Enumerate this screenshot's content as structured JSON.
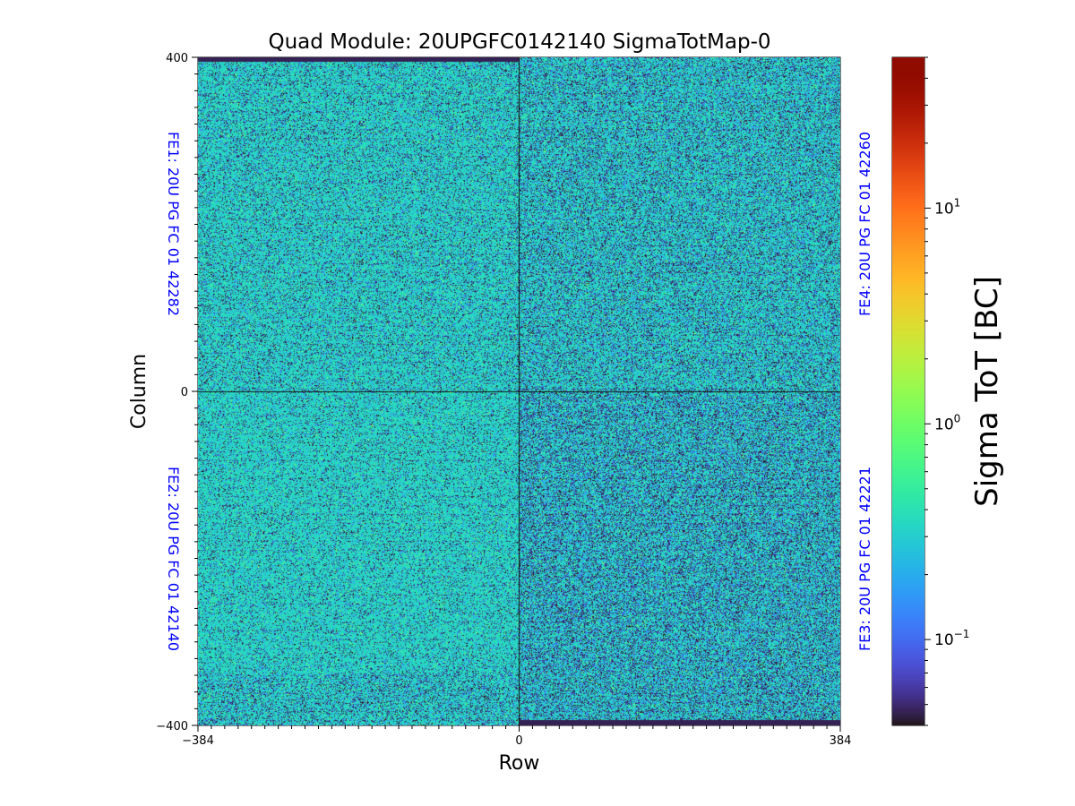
{
  "chart_data": {
    "type": "heatmap",
    "title": "Quad Module: 20UPGFC0142140 SigmaTotMap-0",
    "xlabel": "Row",
    "ylabel": "Column",
    "xlim": [
      -384,
      384
    ],
    "ylim": [
      -400,
      400
    ],
    "x_ticks": [
      "−384",
      "0",
      "384"
    ],
    "y_ticks": [
      "400",
      "0",
      "−400"
    ],
    "quadrant_labels": {
      "top_left": "FE1: 20U PG FC 01 42282",
      "bottom_left": "FE2: 20U PG FC 01 42140",
      "bottom_right": "FE3: 20U PG FC 01 42221",
      "top_right": "FE4: 20U PG FC 01 42260"
    },
    "quadrant_label_color": "#0000ff",
    "colormap": "turbo",
    "color_scale": "log",
    "colorbar": {
      "label": "Sigma ToT [BC]",
      "range": [
        0.04,
        50
      ],
      "ticks": [
        {
          "value": 0.1,
          "base": "10",
          "exp": "−1"
        },
        {
          "value": 1,
          "base": "10",
          "exp": "0"
        },
        {
          "value": 10,
          "base": "10",
          "exp": "1"
        }
      ]
    },
    "typical_value": 0.35,
    "low_value": 0.04
  }
}
